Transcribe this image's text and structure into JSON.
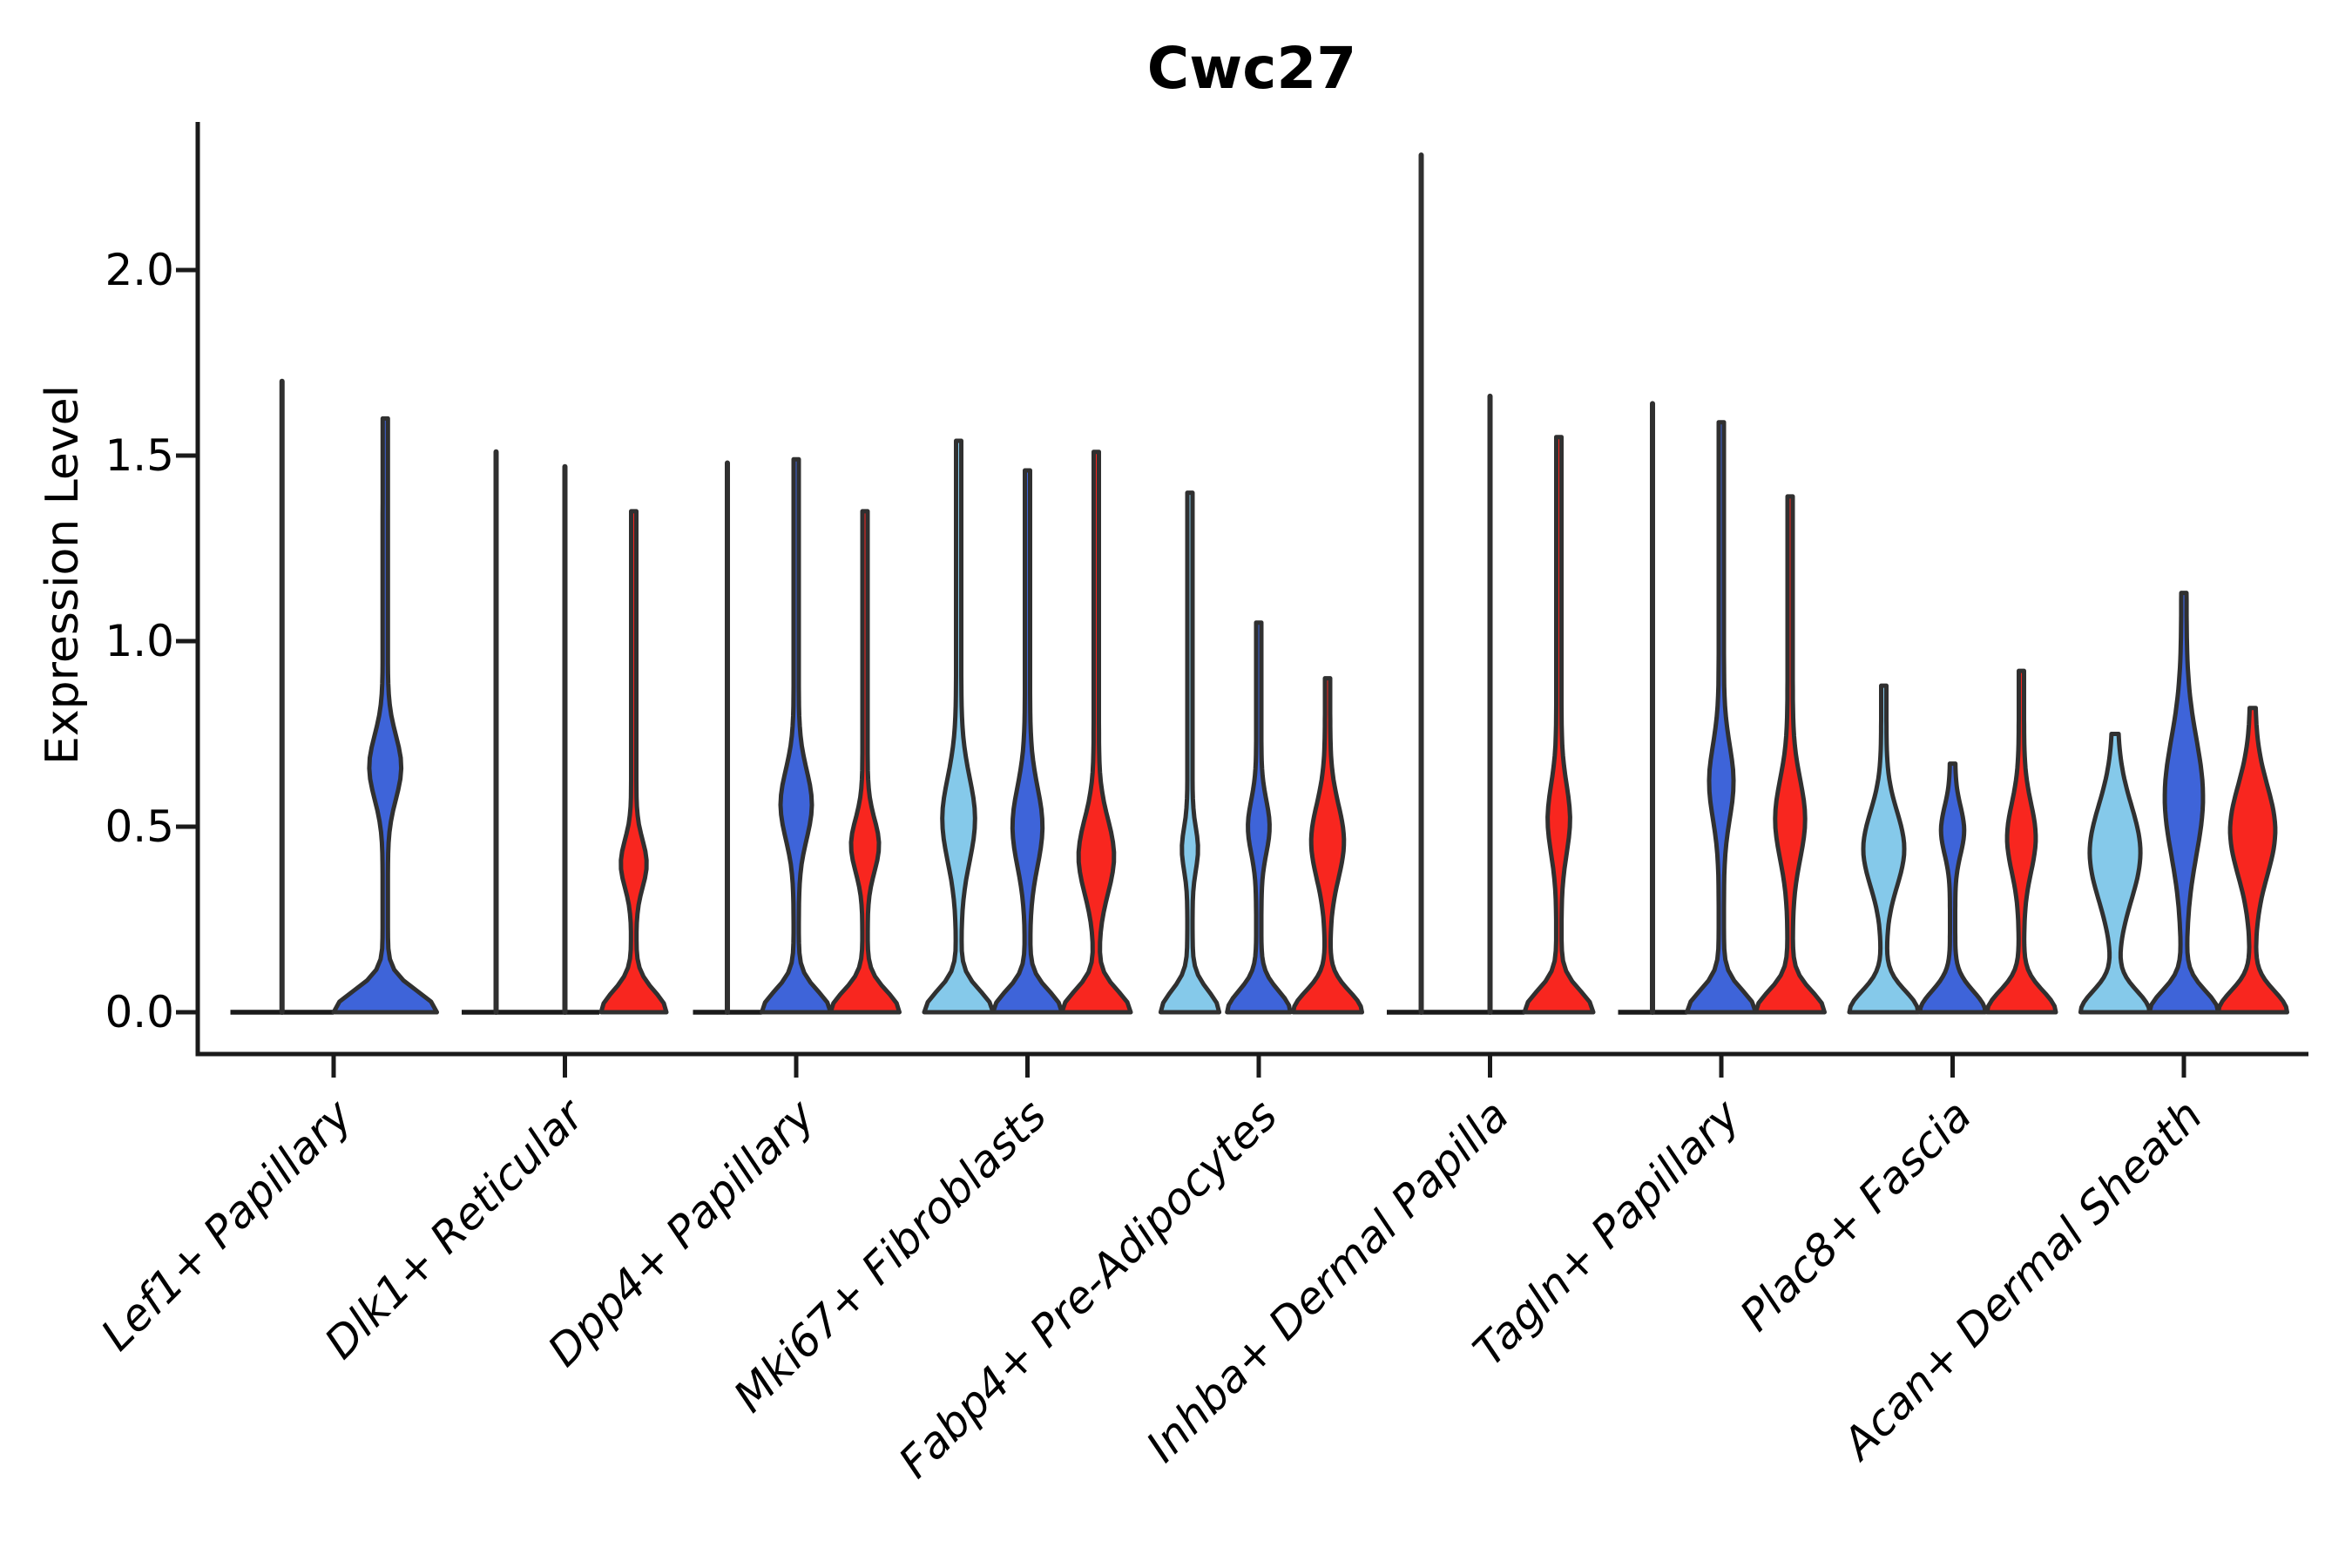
{
  "title": "Cwc27",
  "y_axis": {
    "label": "Expression Level",
    "tick_labels": [
      "0.0",
      "0.5",
      "1.0",
      "1.5",
      "2.0"
    ],
    "tick_values": [
      0.0,
      0.5,
      1.0,
      1.5,
      2.0
    ]
  },
  "colors": {
    "light_blue": "#85C9EA",
    "blue": "#3E64D9",
    "red": "#F8261F",
    "outline": "#303030",
    "axis": "#1a1a1a"
  },
  "chart_data": {
    "type": "violin",
    "title": "Cwc27",
    "xlabel": "",
    "ylabel": "Expression Level",
    "ylim": [
      0,
      2.39
    ],
    "yticks": [
      0.0,
      0.5,
      1.0,
      1.5,
      2.0
    ],
    "grid": false,
    "legend_position": "none",
    "split_series": [
      "light_blue",
      "blue",
      "red"
    ],
    "categories": [
      "Lef1+ Papillary",
      "Dlk1+ Reticular",
      "Dpp4+ Papillary",
      "Mki67+ Fibroblasts",
      "Fabp4+ Pre-Adipocytes",
      "Inhba+ Dermal Papilla",
      "Tagln+ Papillary",
      "Plac8+ Fascia",
      "Acan+ Dermal Sheath"
    ],
    "groups": [
      {
        "category": "Lef1+ Papillary",
        "violins": [
          {
            "series": "light_blue",
            "shape": "spike",
            "max": 1.7,
            "offset": -0.75,
            "width_scale": 1.5
          },
          {
            "series": "blue",
            "shape": "violin",
            "max": 1.6,
            "peak": 0.66,
            "spread": 0.12,
            "bulge_width": 0.26,
            "base_width": 1.0,
            "offset": 0.75,
            "width_scale": 1.5
          }
        ]
      },
      {
        "category": "Dlk1+ Reticular",
        "violins": [
          {
            "series": "light_blue",
            "shape": "spike",
            "max": 1.51,
            "offset": -1,
            "width_scale": 1
          },
          {
            "series": "blue",
            "shape": "spike",
            "max": 1.47,
            "offset": 0,
            "width_scale": 1
          },
          {
            "series": "red",
            "shape": "violin",
            "max": 1.35,
            "peak": 0.4,
            "spread": 0.09,
            "bulge_width": 0.3,
            "base_width": 0.95,
            "offset": 1,
            "width_scale": 1
          }
        ]
      },
      {
        "category": "Dpp4+ Papillary",
        "violins": [
          {
            "series": "light_blue",
            "shape": "spike",
            "max": 1.48,
            "offset": -1,
            "width_scale": 1
          },
          {
            "series": "blue",
            "shape": "violin",
            "max": 1.49,
            "peak": 0.56,
            "spread": 0.13,
            "bulge_width": 0.38,
            "base_width": 1.0,
            "offset": 0,
            "width_scale": 1
          },
          {
            "series": "red",
            "shape": "violin",
            "max": 1.35,
            "peak": 0.45,
            "spread": 0.1,
            "bulge_width": 0.33,
            "base_width": 1.0,
            "offset": 1,
            "width_scale": 1
          }
        ]
      },
      {
        "category": "Mki67+ Fibroblasts",
        "violins": [
          {
            "series": "light_blue",
            "shape": "violin",
            "max": 1.54,
            "peak": 0.52,
            "spread": 0.16,
            "bulge_width": 0.4,
            "base_width": 1.0,
            "offset": -1,
            "width_scale": 1
          },
          {
            "series": "blue",
            "shape": "violin",
            "max": 1.46,
            "peak": 0.5,
            "spread": 0.15,
            "bulge_width": 0.36,
            "base_width": 1.0,
            "offset": 0,
            "width_scale": 1
          },
          {
            "series": "red",
            "shape": "violin",
            "max": 1.51,
            "peak": 0.42,
            "spread": 0.14,
            "bulge_width": 0.44,
            "base_width": 1.0,
            "offset": 1,
            "width_scale": 1
          }
        ]
      },
      {
        "category": "Fabp4+ Pre-Adipocytes",
        "violins": [
          {
            "series": "light_blue",
            "shape": "violin",
            "max": 1.4,
            "peak": 0.44,
            "spread": 0.08,
            "bulge_width": 0.16,
            "base_width": 0.85,
            "offset": -1,
            "width_scale": 1
          },
          {
            "series": "blue",
            "shape": "violin",
            "max": 1.05,
            "peak": 0.5,
            "spread": 0.1,
            "bulge_width": 0.24,
            "base_width": 0.92,
            "offset": 0,
            "width_scale": 1
          },
          {
            "series": "red",
            "shape": "violin",
            "max": 0.9,
            "peak": 0.46,
            "spread": 0.14,
            "bulge_width": 0.4,
            "base_width": 1.0,
            "offset": 1,
            "width_scale": 1
          }
        ]
      },
      {
        "category": "Inhba+ Dermal Papilla",
        "violins": [
          {
            "series": "light_blue",
            "shape": "spike",
            "max": 2.31,
            "offset": -1,
            "width_scale": 1
          },
          {
            "series": "blue",
            "shape": "spike",
            "max": 1.66,
            "offset": 0,
            "width_scale": 1
          },
          {
            "series": "red",
            "shape": "violin",
            "max": 1.55,
            "peak": 0.52,
            "spread": 0.13,
            "bulge_width": 0.25,
            "base_width": 1.0,
            "offset": 1,
            "width_scale": 1
          }
        ]
      },
      {
        "category": "Tagln+ Papillary",
        "violins": [
          {
            "series": "light_blue",
            "shape": "spike",
            "max": 1.64,
            "offset": -1,
            "width_scale": 1
          },
          {
            "series": "blue",
            "shape": "violin",
            "max": 1.59,
            "peak": 0.62,
            "spread": 0.14,
            "bulge_width": 0.28,
            "base_width": 1.0,
            "offset": 0,
            "width_scale": 1
          },
          {
            "series": "red",
            "shape": "violin",
            "max": 1.39,
            "peak": 0.52,
            "spread": 0.15,
            "bulge_width": 0.36,
            "base_width": 1.0,
            "offset": 1,
            "width_scale": 1
          }
        ]
      },
      {
        "category": "Plac8+ Fascia",
        "violins": [
          {
            "series": "light_blue",
            "shape": "violin",
            "max": 0.88,
            "peak": 0.44,
            "spread": 0.14,
            "bulge_width": 0.52,
            "base_width": 1.0,
            "offset": -1,
            "width_scale": 1
          },
          {
            "series": "blue",
            "shape": "violin",
            "max": 0.67,
            "peak": 0.49,
            "spread": 0.09,
            "bulge_width": 0.26,
            "base_width": 0.95,
            "offset": 0,
            "width_scale": 1
          },
          {
            "series": "red",
            "shape": "violin",
            "max": 0.92,
            "peak": 0.47,
            "spread": 0.13,
            "bulge_width": 0.34,
            "base_width": 1.0,
            "offset": 1,
            "width_scale": 1
          }
        ]
      },
      {
        "category": "Acan+ Dermal Sheath",
        "violins": [
          {
            "series": "light_blue",
            "shape": "violin",
            "max": 0.75,
            "peak": 0.43,
            "spread": 0.18,
            "bulge_width": 0.66,
            "base_width": 1.0,
            "offset": -1,
            "width_scale": 1
          },
          {
            "series": "blue",
            "shape": "violin",
            "max": 1.13,
            "peak": 0.58,
            "spread": 0.22,
            "bulge_width": 0.48,
            "base_width": 1.0,
            "offset": 0,
            "width_scale": 1
          },
          {
            "series": "red",
            "shape": "violin",
            "max": 0.82,
            "peak": 0.49,
            "spread": 0.17,
            "bulge_width": 0.58,
            "base_width": 1.0,
            "offset": 1,
            "width_scale": 1
          }
        ]
      }
    ]
  }
}
